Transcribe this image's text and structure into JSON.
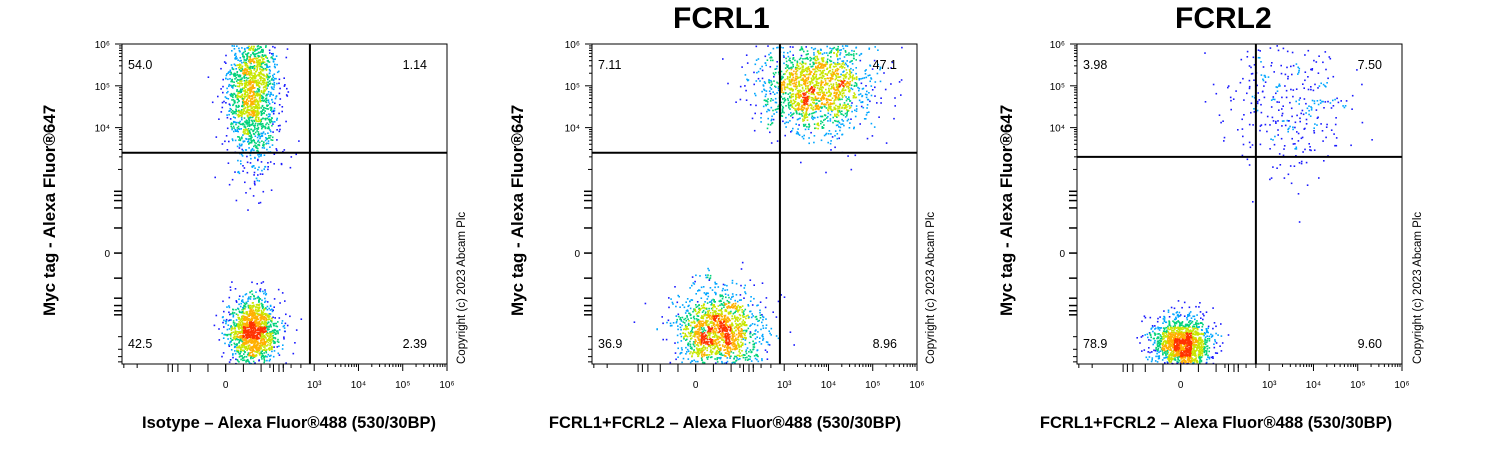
{
  "chart_data": [
    {
      "type": "scatter",
      "title": "",
      "xlabel": "Isotype – Alexa Fluor®488 (530/30BP)",
      "ylabel": "Myc tag - Alexa Fluor®647",
      "copyright": "Copyright (c) 2023 Abcam Plc",
      "x_ticks": [
        "0",
        "10³",
        "10⁴",
        "10⁵",
        "10⁶"
      ],
      "y_ticks": [
        "0",
        "10⁴",
        "10⁵",
        "10⁶"
      ],
      "x_scale": "biexponential",
      "y_scale": "biexponential",
      "quadrant_gate": {
        "x": 800,
        "y": 2500
      },
      "quadrants": {
        "upper_left": "54.0",
        "upper_right": "1.14",
        "lower_left": "42.5",
        "lower_right": "2.39"
      },
      "populations": [
        {
          "x_center": 60,
          "x_spread": 0.18,
          "y_center": 80000,
          "y_spread": 0.55,
          "count": 1700
        },
        {
          "x_center": 60,
          "x_spread": 0.18,
          "y_center": -700,
          "y_spread": 0.25,
          "count": 1400
        }
      ]
    },
    {
      "type": "scatter",
      "title": "FCRL1",
      "xlabel": "FCRL1+FCRL2 – Alexa Fluor®488 (530/30BP)",
      "ylabel": "Myc tag - Alexa Fluor®647",
      "copyright": "Copyright (c) 2023 Abcam Plc",
      "x_ticks": [
        "0",
        "10³",
        "10⁴",
        "10⁵",
        "10⁶"
      ],
      "y_ticks": [
        "0",
        "10⁴",
        "10⁵",
        "10⁶"
      ],
      "x_scale": "biexponential",
      "y_scale": "biexponential",
      "quadrant_gate": {
        "x": 800,
        "y": 2500
      },
      "quadrants": {
        "upper_left": "7.11",
        "upper_right": "47.1",
        "lower_left": "36.9",
        "lower_right": "8.96"
      },
      "populations": [
        {
          "x_center": 5000,
          "x_spread": 0.4,
          "y_center": 100000,
          "y_spread": 0.35,
          "count": 1700
        },
        {
          "x_center": 50,
          "x_spread": 0.3,
          "y_center": -700,
          "y_spread": 0.3,
          "count": 1500
        }
      ]
    },
    {
      "type": "scatter",
      "title": "FCRL2",
      "xlabel": "FCRL1+FCRL2 – Alexa Fluor®488 (530/30BP)",
      "ylabel": "Myc tag - Alexa Fluor®647",
      "copyright": "Copyright (c) 2023 Abcam Plc",
      "x_ticks": [
        "0",
        "10³",
        "10⁴",
        "10⁵",
        "10⁶"
      ],
      "y_ticks": [
        "0",
        "10⁴",
        "10⁵",
        "10⁶"
      ],
      "x_scale": "biexponential",
      "y_scale": "biexponential",
      "quadrant_gate": {
        "x": 500,
        "y": 2000
      },
      "quadrants": {
        "upper_left": "3.98",
        "upper_right": "7.50",
        "lower_left": "78.9",
        "lower_right": "9.60"
      },
      "populations": [
        {
          "x_center": 3000,
          "x_spread": 0.45,
          "y_center": 40000,
          "y_spread": 0.55,
          "count": 350
        },
        {
          "x_center": 0,
          "x_spread": 0.2,
          "y_center": -1500,
          "y_spread": 0.2,
          "count": 1500
        }
      ]
    }
  ]
}
